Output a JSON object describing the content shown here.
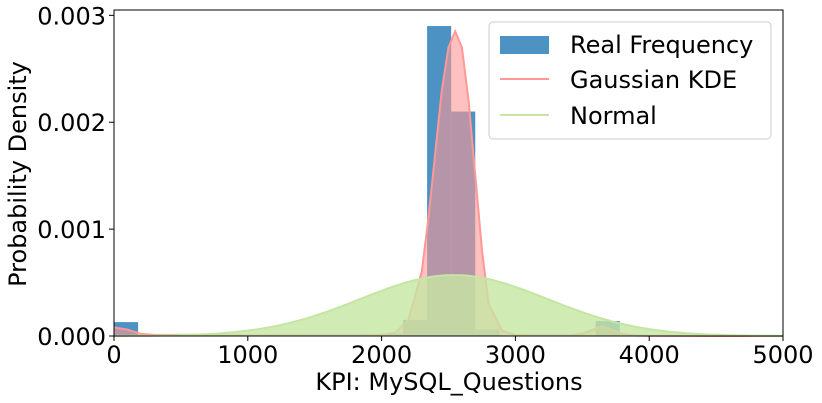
{
  "chart_data": {
    "type": "bar",
    "xlabel": "KPI: MySQL_Questions",
    "ylabel": "Probability Density",
    "xlim": [
      0,
      5000
    ],
    "ylim": [
      0,
      0.00305
    ],
    "x_ticks": [
      0,
      1000,
      2000,
      3000,
      4000,
      5000
    ],
    "x_tick_labels": [
      "0",
      "1000",
      "2000",
      "3000",
      "4000",
      "5000"
    ],
    "y_ticks": [
      0,
      0.001,
      0.002,
      0.003
    ],
    "y_tick_labels": [
      "0.000",
      "0.001",
      "0.002",
      "0.003"
    ],
    "grid": false,
    "legend_position": "top-right",
    "histogram": {
      "name": "Real Frequency",
      "color": "#1f77b4",
      "bin_edges": [
        0,
        180,
        360,
        540,
        720,
        900,
        1080,
        1260,
        1440,
        1620,
        1800,
        1980,
        2160,
        2340,
        2520,
        2700,
        2880,
        3060,
        3240,
        3420,
        3600,
        3780,
        3960,
        4140,
        4320,
        4500,
        4680,
        4860,
        5000
      ],
      "values": [
        0.00013,
        0,
        0,
        0,
        0,
        0,
        0,
        0,
        0,
        0,
        0,
        2e-05,
        0.00015,
        0.0029,
        0.0021,
        6e-05,
        0,
        0,
        0,
        0,
        0.00014,
        0,
        0,
        0,
        0,
        0,
        0,
        0
      ]
    },
    "series": [
      {
        "name": "Gaussian KDE",
        "color": "#ff9896",
        "x": [
          0,
          100,
          200,
          300,
          400,
          600,
          800,
          1000,
          1200,
          1400,
          1600,
          1800,
          2000,
          2100,
          2200,
          2300,
          2350,
          2400,
          2450,
          2500,
          2550,
          2600,
          2650,
          2700,
          2750,
          2800,
          2900,
          3000,
          3200,
          3400,
          3500,
          3600,
          3650,
          3700,
          3800,
          3900,
          4000,
          4500,
          5000
        ],
        "y": [
          8e-05,
          6e-05,
          2e-05,
          1e-05,
          1e-05,
          1e-05,
          5e-06,
          5e-06,
          5e-06,
          5e-06,
          5e-06,
          6e-06,
          1e-05,
          3e-05,
          0.00015,
          0.0006,
          0.0011,
          0.0017,
          0.0023,
          0.0027,
          0.00285,
          0.0027,
          0.0022,
          0.0015,
          0.0008,
          0.0003,
          5e-05,
          1e-05,
          5e-06,
          5e-06,
          2e-05,
          7e-05,
          9e-05,
          7e-05,
          2e-05,
          5e-06,
          2e-06,
          0,
          0
        ]
      },
      {
        "name": "Normal",
        "color": "#c5e6a2",
        "mean": 2540,
        "std": 700,
        "peak": 0.00057
      }
    ]
  }
}
